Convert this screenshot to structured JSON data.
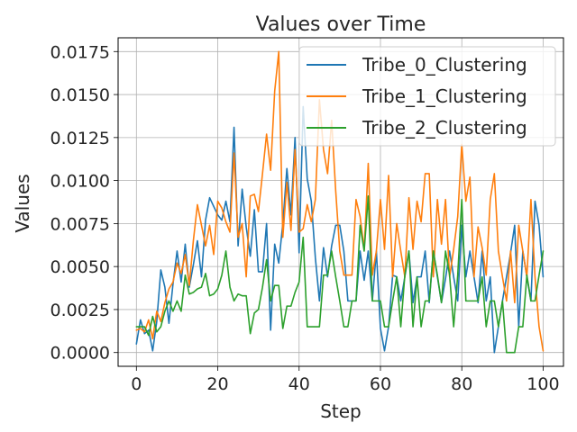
{
  "chart_data": {
    "type": "line",
    "title": "Values over Time",
    "xlabel": "Step",
    "ylabel": "Values",
    "xlim": [
      -4.5,
      105
    ],
    "ylim": [
      -0.0008,
      0.0183
    ],
    "xticks": [
      0,
      20,
      40,
      60,
      80,
      100
    ],
    "xtick_labels": [
      "0",
      "20",
      "40",
      "60",
      "80",
      "100"
    ],
    "yticks": [
      0,
      0.0025,
      0.005,
      0.0075,
      0.01,
      0.0125,
      0.015,
      0.0175
    ],
    "ytick_labels": [
      "0.0000",
      "0.0025",
      "0.0050",
      "0.0075",
      "0.0100",
      "0.0125",
      "0.0150",
      "0.0175"
    ],
    "grid": true,
    "legend_position": "top-right",
    "x": [
      0,
      1,
      2,
      3,
      4,
      5,
      6,
      7,
      8,
      9,
      10,
      11,
      12,
      13,
      14,
      15,
      16,
      17,
      18,
      19,
      20,
      21,
      22,
      23,
      24,
      25,
      26,
      27,
      28,
      29,
      30,
      31,
      32,
      33,
      34,
      35,
      36,
      37,
      38,
      39,
      40,
      41,
      42,
      43,
      44,
      45,
      46,
      47,
      48,
      49,
      50,
      51,
      52,
      53,
      54,
      55,
      56,
      57,
      58,
      59,
      60,
      61,
      62,
      63,
      64,
      65,
      66,
      67,
      68,
      69,
      70,
      71,
      72,
      73,
      74,
      75,
      76,
      77,
      78,
      79,
      80,
      81,
      82,
      83,
      84,
      85,
      86,
      87,
      88,
      89,
      90,
      91,
      92,
      93,
      94,
      95,
      96,
      97,
      98,
      99,
      100
    ],
    "series": [
      {
        "name": "Tribe_0_Clustering",
        "color": "#1f77b4",
        "values": [
          0.0005,
          0.0019,
          0.0011,
          0.0013,
          0.0001,
          0.0018,
          0.0048,
          0.0038,
          0.0017,
          0.004,
          0.0059,
          0.0041,
          0.0063,
          0.0038,
          0.0051,
          0.0065,
          0.0044,
          0.0077,
          0.009,
          0.0085,
          0.008,
          0.0077,
          0.0088,
          0.0076,
          0.0131,
          0.0062,
          0.0095,
          0.0073,
          0.0056,
          0.0083,
          0.0047,
          0.0047,
          0.0075,
          0.0013,
          0.0063,
          0.0052,
          0.0075,
          0.0107,
          0.008,
          0.0125,
          0.0058,
          0.0143,
          0.0101,
          0.0088,
          0.0055,
          0.003,
          0.0061,
          0.0044,
          0.0062,
          0.0074,
          0.0074,
          0.0059,
          0.003,
          0.003,
          0.003,
          0.0059,
          0.0042,
          0.0059,
          0.003,
          0.0059,
          0.0014,
          0.0001,
          0.0015,
          0.0045,
          0.0044,
          0.003,
          0.0044,
          0.0059,
          0.0029,
          0.0044,
          0.0044,
          0.0059,
          0.0029,
          0.0059,
          0.0044,
          0.0029,
          0.0043,
          0.0059,
          0.0044,
          0.003,
          0.0074,
          0.0044,
          0.0059,
          0.0044,
          0.0029,
          0.0059,
          0.003,
          0.0044,
          0.0,
          0.0015,
          0.003,
          0.0044,
          0.0058,
          0.0074,
          0.0015,
          0.0059,
          0.0044,
          0.003,
          0.0088,
          0.0074,
          0.0044
        ]
      },
      {
        "name": "Tribe_1_Clustering",
        "color": "#ff7f0e",
        "values": [
          0.0013,
          0.0014,
          0.0012,
          0.0019,
          0.0008,
          0.0024,
          0.0018,
          0.0029,
          0.0037,
          0.0041,
          0.0052,
          0.0046,
          0.0057,
          0.0039,
          0.0065,
          0.0086,
          0.0074,
          0.0062,
          0.0074,
          0.0057,
          0.0088,
          0.0084,
          0.0076,
          0.007,
          0.0116,
          0.0067,
          0.0075,
          0.0044,
          0.0091,
          0.0092,
          0.0082,
          0.0104,
          0.0127,
          0.0106,
          0.0152,
          0.0175,
          0.0067,
          0.0099,
          0.0071,
          0.0118,
          0.007,
          0.0072,
          0.0086,
          0.0076,
          0.0089,
          0.0147,
          0.0118,
          0.0104,
          0.0135,
          0.0094,
          0.0059,
          0.0045,
          0.0045,
          0.0045,
          0.0089,
          0.0079,
          0.006,
          0.011,
          0.0045,
          0.0059,
          0.0089,
          0.006,
          0.0103,
          0.0044,
          0.0075,
          0.0059,
          0.0044,
          0.009,
          0.006,
          0.0088,
          0.0076,
          0.0104,
          0.0104,
          0.0044,
          0.0089,
          0.0063,
          0.0089,
          0.0044,
          0.006,
          0.0079,
          0.0121,
          0.0088,
          0.0102,
          0.0044,
          0.0073,
          0.0061,
          0.0045,
          0.0089,
          0.0104,
          0.0059,
          0.0044,
          0.003,
          0.0059,
          0.0029,
          0.0074,
          0.0059,
          0.0044,
          0.0089,
          0.0044,
          0.0015,
          0.0001
        ]
      },
      {
        "name": "Tribe_2_Clustering",
        "color": "#2ca02c",
        "values": [
          0.0015,
          0.0015,
          0.0015,
          0.001,
          0.0021,
          0.0012,
          0.0015,
          0.0024,
          0.003,
          0.0024,
          0.003,
          0.0024,
          0.0045,
          0.0034,
          0.0035,
          0.0037,
          0.0038,
          0.0046,
          0.0033,
          0.0034,
          0.0037,
          0.0045,
          0.0059,
          0.0038,
          0.003,
          0.0034,
          0.0033,
          0.0033,
          0.0011,
          0.0023,
          0.0025,
          0.0038,
          0.0054,
          0.003,
          0.0039,
          0.0039,
          0.0014,
          0.0027,
          0.0027,
          0.0035,
          0.0041,
          0.0067,
          0.0015,
          0.0015,
          0.0015,
          0.0015,
          0.0045,
          0.0045,
          0.0059,
          0.0044,
          0.003,
          0.0015,
          0.0015,
          0.003,
          0.003,
          0.0074,
          0.0059,
          0.0091,
          0.003,
          0.003,
          0.003,
          0.0015,
          0.0015,
          0.003,
          0.0044,
          0.0015,
          0.0045,
          0.0059,
          0.0015,
          0.0044,
          0.0015,
          0.003,
          0.003,
          0.0059,
          0.0045,
          0.0029,
          0.0059,
          0.0045,
          0.0015,
          0.0045,
          0.0089,
          0.003,
          0.003,
          0.003,
          0.003,
          0.0044,
          0.0015,
          0.003,
          0.003,
          0.0015,
          0.003,
          0.0,
          0.0,
          0.0,
          0.0015,
          0.0015,
          0.0045,
          0.003,
          0.003,
          0.0045,
          0.0059
        ]
      }
    ]
  }
}
